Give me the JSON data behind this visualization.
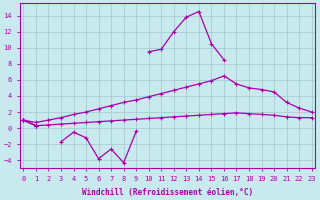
{
  "xlabel": "Windchill (Refroidissement éolien,°C)",
  "background_color": "#c8eaee",
  "grid_color": "#a0c8cc",
  "line_color": "#aa00aa",
  "x": [
    0,
    1,
    2,
    3,
    4,
    5,
    6,
    7,
    8,
    9,
    10,
    11,
    12,
    13,
    14,
    15,
    16,
    17,
    18,
    19,
    20,
    21,
    22,
    23
  ],
  "line_zigzag": [
    1,
    0.3,
    null,
    -1.7,
    -0.5,
    -1.2,
    -3.8,
    -2.6,
    -4.3,
    -0.4,
    null,
    null,
    null,
    null,
    null,
    null,
    null,
    null,
    null,
    null,
    null,
    null,
    null,
    null
  ],
  "line_peak": [
    1,
    0.3,
    null,
    null,
    null,
    null,
    null,
    null,
    null,
    null,
    9.5,
    9.8,
    12.0,
    13.8,
    14.5,
    10.5,
    8.5,
    null,
    null,
    null,
    null,
    null,
    null,
    null
  ],
  "line_env_up": [
    1.0,
    0.7,
    1.0,
    1.3,
    1.7,
    2.0,
    2.4,
    2.8,
    3.2,
    3.5,
    3.9,
    4.3,
    4.7,
    5.1,
    5.5,
    5.9,
    6.5,
    5.5,
    5.0,
    4.8,
    4.5,
    3.2,
    2.5,
    2.0
  ],
  "line_env_low": [
    1.0,
    0.3,
    0.4,
    0.5,
    0.6,
    0.7,
    0.8,
    0.9,
    1.0,
    1.1,
    1.2,
    1.3,
    1.4,
    1.5,
    1.6,
    1.7,
    1.8,
    1.9,
    1.8,
    1.7,
    1.6,
    1.4,
    1.3,
    1.3
  ],
  "ylim": [
    -5.0,
    15.5
  ],
  "xlim": [
    -0.3,
    23.3
  ],
  "yticks": [
    -4,
    -2,
    0,
    2,
    4,
    6,
    8,
    10,
    12,
    14
  ],
  "xticks": [
    0,
    1,
    2,
    3,
    4,
    5,
    6,
    7,
    8,
    9,
    10,
    11,
    12,
    13,
    14,
    15,
    16,
    17,
    18,
    19,
    20,
    21,
    22,
    23
  ],
  "tick_fontsize": 5.0,
  "xlabel_fontsize": 5.5
}
